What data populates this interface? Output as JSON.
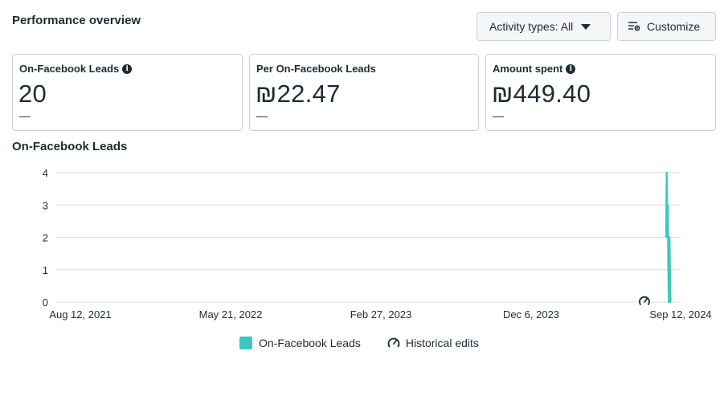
{
  "header": {
    "title": "Performance overview",
    "activity_label": "Activity types: All",
    "customize_label": "Customize"
  },
  "cards": [
    {
      "label": "On-Facebook Leads",
      "value": "20",
      "delta": "—",
      "info": true
    },
    {
      "label": "Per On-Facebook Leads",
      "value": "₪22.47",
      "delta": "—",
      "info": false
    },
    {
      "label": "Amount spent",
      "value": "₪449.40",
      "delta": "—",
      "info": true
    }
  ],
  "icons": {
    "info": "info-icon",
    "caret": "caret-down-icon",
    "customize": "customize-icon",
    "history": "historical-edits-icon"
  },
  "colors": {
    "series": "#3ec7c0",
    "grid": "#dadde1",
    "text": "#1c2b33"
  },
  "chart_data": {
    "type": "line",
    "title": "On-Facebook Leads",
    "y_ticks": [
      "0",
      "1",
      "2",
      "3",
      "4"
    ],
    "ylim": [
      0,
      4
    ],
    "x_tick_labels": [
      "Aug 12, 2021",
      "May 21, 2022",
      "Feb 27, 2023",
      "Dec 6, 2023",
      "Sep 12, 2024"
    ],
    "xlim": [
      "2021-08-12",
      "2024-09-12"
    ],
    "series": [
      {
        "name": "On-Facebook Leads",
        "x": [
          "2024-08-16",
          "2024-08-17",
          "2024-08-18",
          "2024-08-19",
          "2024-08-20",
          "2024-08-21",
          "2024-08-22",
          "2024-08-23",
          "2024-08-24",
          "2024-08-25"
        ],
        "values": [
          2,
          4,
          2,
          3,
          1,
          0,
          2,
          1,
          0,
          0
        ]
      }
    ],
    "legend": [
      "On-Facebook Leads",
      "Historical edits"
    ],
    "legend_position": "bottom",
    "grid": true
  }
}
